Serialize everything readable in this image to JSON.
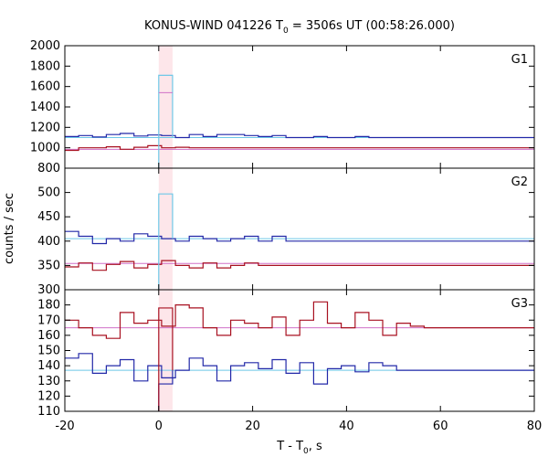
{
  "chart_data": {
    "type": "line",
    "title": {
      "main": "KONUS-WIND 041226 T",
      "sub": "0",
      "rest": " = 3506s UT (00:58:26.000)"
    },
    "xlabel": {
      "main": "T - T",
      "sub": "0",
      "rest": ", s"
    },
    "ylabel": "counts / sec",
    "xlim": [
      -20,
      80
    ],
    "x_ticks": [
      -20,
      0,
      20,
      40,
      60,
      80
    ],
    "highlight_interval": [
      0,
      2.944
    ],
    "bin_start": -20,
    "bin_width": 2.944,
    "trigger_bin_width": 2.944,
    "colors": {
      "blue": "#2228a8",
      "red": "#a81020",
      "cyan": "#6ec8e8",
      "pink": "#d070c8",
      "highlight": "#fde6ea",
      "axis": "#000000"
    },
    "panels": [
      {
        "label": "G1",
        "ylim": [
          800,
          2000
        ],
        "y_ticks": [
          800,
          1000,
          1200,
          1400,
          1600,
          1800,
          2000
        ],
        "series": [
          {
            "color_key": "blue",
            "values": [
              1110,
              1120,
              1105,
              1130,
              1140,
              1115,
              1125,
              1120,
              1100,
              1130,
              1110,
              1130,
              1130,
              1120,
              1110,
              1120,
              1100,
              1100,
              1110,
              1100,
              1100,
              1110,
              1100,
              1100,
              1100,
              1100,
              1100,
              1100,
              1100,
              1100,
              1100,
              1100,
              1100,
              1100,
              1100
            ]
          },
          {
            "color_key": "red",
            "values": [
              975,
              1000,
              1000,
              1010,
              985,
              1005,
              1020,
              1000,
              1005,
              1000,
              1000,
              1000,
              1000,
              1000,
              1000,
              1000,
              1000,
              1000,
              1000,
              1000,
              1000,
              1000,
              1000,
              1000,
              1000,
              1000,
              1000,
              1000,
              1000,
              1000,
              1000,
              1000,
              1000,
              1000,
              1000
            ]
          }
        ],
        "trigger": {
          "color_key": "cyan",
          "value": 1710
        },
        "trigger_inner": {
          "color_key": "pink",
          "value": 1540
        },
        "backgrounds": [
          {
            "color_key": "cyan",
            "value": 1100
          },
          {
            "color_key": "pink",
            "value": 985
          }
        ]
      },
      {
        "label": "G2",
        "ylim": [
          300,
          550
        ],
        "y_ticks": [
          300,
          350,
          400,
          450,
          500
        ],
        "series": [
          {
            "color_key": "blue",
            "values": [
              420,
              410,
              395,
              405,
              400,
              415,
              410,
              405,
              400,
              410,
              405,
              400,
              405,
              410,
              400,
              410,
              400,
              400,
              400,
              400,
              400,
              400,
              400,
              400,
              400,
              400,
              400,
              400,
              400,
              400,
              400,
              400,
              400,
              400,
              400
            ]
          },
          {
            "color_key": "red",
            "values": [
              347,
              355,
              340,
              352,
              358,
              345,
              352,
              360,
              350,
              345,
              355,
              345,
              350,
              355,
              350,
              350,
              350,
              350,
              350,
              350,
              350,
              350,
              350,
              350,
              350,
              350,
              350,
              350,
              350,
              350,
              350,
              350,
              350,
              350,
              350
            ]
          }
        ],
        "trigger": {
          "color_key": "cyan",
          "value": 497
        },
        "backgrounds": [
          {
            "color_key": "cyan",
            "value": 405
          },
          {
            "color_key": "pink",
            "value": 354
          }
        ]
      },
      {
        "label": "G3",
        "ylim": [
          110,
          190
        ],
        "y_ticks": [
          110,
          120,
          130,
          140,
          150,
          160,
          170,
          180
        ],
        "series": [
          {
            "color_key": "red",
            "values": [
              170,
              165,
              160,
              158,
              175,
              168,
              170,
              166,
              180,
              178,
              165,
              160,
              170,
              168,
              165,
              172,
              160,
              170,
              182,
              168,
              165,
              175,
              170,
              160,
              168,
              166,
              165,
              165,
              165,
              165,
              165,
              165,
              165,
              165,
              165
            ]
          },
          {
            "color_key": "blue",
            "values": [
              145,
              148,
              135,
              140,
              144,
              130,
              140,
              132,
              137,
              145,
              140,
              130,
              140,
              142,
              138,
              144,
              135,
              142,
              128,
              138,
              140,
              136,
              142,
              140,
              137,
              137,
              137,
              137,
              137,
              137,
              137,
              137,
              137,
              137,
              137
            ]
          }
        ],
        "trigger_red": {
          "color_key": "red",
          "value": 178
        },
        "trigger": {
          "color_key": "blue",
          "value": 128
        },
        "backgrounds": [
          {
            "color_key": "cyan",
            "value": 137
          },
          {
            "color_key": "pink",
            "value": 165
          }
        ]
      }
    ]
  }
}
